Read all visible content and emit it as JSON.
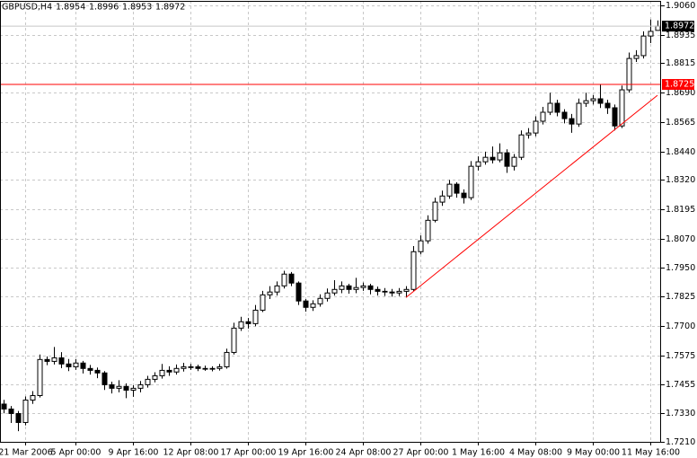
{
  "chart_data": {
    "type": "candlestick",
    "title": "GBPUSD,H4",
    "categories": [
      null,
      null,
      null,
      "21 Mar 2006",
      null,
      null,
      null,
      null,
      null,
      null,
      "5 Apr 00:00",
      null,
      null,
      null,
      null,
      null,
      null,
      null,
      "9 Apr 16:00",
      null,
      null,
      null,
      null,
      null,
      null,
      null,
      "12 Apr 08:00",
      null,
      null,
      null,
      null,
      null,
      null,
      null,
      "17 Apr 00:00",
      null,
      null,
      null,
      null,
      null,
      null,
      null,
      "19 Apr 16:00",
      null,
      null,
      null,
      null,
      null,
      null,
      null,
      "24 Apr 08:00",
      null,
      null,
      null,
      null,
      null,
      null,
      null,
      "27 Apr 00:00",
      null,
      null,
      null,
      null,
      null,
      null,
      null,
      "1 May 16:00",
      null,
      null,
      null,
      null,
      null,
      null,
      null,
      "4 May 08:00",
      null,
      null,
      null,
      null,
      null,
      null,
      null,
      "9 May 00:00",
      null,
      null,
      null,
      null,
      null,
      null,
      null,
      "11 May 16:00",
      null
    ],
    "open": [
      1.737,
      1.7349,
      1.733,
      1.7292,
      1.7387,
      1.7406,
      1.7559,
      1.7551,
      1.7566,
      1.754,
      1.7528,
      1.7544,
      1.7521,
      1.7513,
      1.7502,
      1.7452,
      1.7437,
      1.7445,
      1.7429,
      1.7437,
      1.7452,
      1.7475,
      1.749,
      1.7513,
      1.7506,
      1.7521,
      1.7528,
      1.7528,
      1.7521,
      1.7521,
      1.7521,
      1.7528,
      1.7589,
      1.7692,
      1.7719,
      1.7711,
      1.7768,
      1.7833,
      1.7845,
      1.7871,
      1.7921,
      1.7883,
      1.7807,
      1.778,
      1.7795,
      1.7818,
      1.7841,
      1.7856,
      1.7871,
      1.7856,
      1.7864,
      1.7871,
      1.7856,
      1.7848,
      1.7845,
      1.7841,
      1.7848,
      1.7856,
      1.8016,
      1.8062,
      1.8149,
      1.8226,
      1.8252,
      1.8302,
      1.8264,
      1.8245,
      1.8378,
      1.8397,
      1.8416,
      1.8405,
      1.8435,
      1.8378,
      1.8416,
      1.8511,
      1.8519,
      1.8569,
      1.8607,
      1.8645,
      1.8607,
      1.858,
      1.8557,
      1.8645,
      1.8656,
      1.8664,
      1.8645,
      1.8626,
      1.8549,
      1.8702,
      1.8835,
      1.8847,
      1.893,
      1.8954
    ],
    "high": [
      1.7388,
      1.7362,
      1.7341,
      1.7402,
      1.7425,
      1.758,
      1.7572,
      1.7612,
      1.759,
      1.7561,
      1.756,
      1.7553,
      1.7536,
      1.7525,
      1.751,
      1.7465,
      1.7471,
      1.7458,
      1.745,
      1.7468,
      1.749,
      1.7505,
      1.754,
      1.753,
      1.7538,
      1.7545,
      1.754,
      1.7537,
      1.7533,
      1.753,
      1.754,
      1.7605,
      1.7715,
      1.774,
      1.7735,
      1.779,
      1.785,
      1.787,
      1.789,
      1.7935,
      1.793,
      1.789,
      1.7815,
      1.781,
      1.7835,
      1.786,
      1.7895,
      1.789,
      1.788,
      1.7905,
      1.7885,
      1.788,
      1.7868,
      1.7862,
      1.7858,
      1.7862,
      1.787,
      1.804,
      1.8085,
      1.817,
      1.8245,
      1.8275,
      1.832,
      1.831,
      1.828,
      1.84,
      1.842,
      1.844,
      1.8462,
      1.8475,
      1.845,
      1.843,
      1.853,
      1.854,
      1.859,
      1.863,
      1.869,
      1.866,
      1.862,
      1.86,
      1.8665,
      1.869,
      1.868,
      1.8725,
      1.866,
      1.864,
      1.872,
      1.886,
      1.887,
      1.895,
      1.9,
      1.8996
    ],
    "low": [
      1.7331,
      1.729,
      1.7255,
      1.728,
      1.7371,
      1.7398,
      1.7535,
      1.7538,
      1.7522,
      1.751,
      1.7515,
      1.75,
      1.7495,
      1.748,
      1.743,
      1.7415,
      1.742,
      1.7395,
      1.7401,
      1.742,
      1.744,
      1.7462,
      1.7478,
      1.749,
      1.7495,
      1.7508,
      1.7515,
      1.751,
      1.7511,
      1.7509,
      1.7512,
      1.752,
      1.758,
      1.768,
      1.769,
      1.77,
      1.776,
      1.7815,
      1.783,
      1.786,
      1.787,
      1.779,
      1.7762,
      1.7765,
      1.7783,
      1.7805,
      1.783,
      1.784,
      1.7838,
      1.784,
      1.785,
      1.7835,
      1.783,
      1.7828,
      1.7825,
      1.7828,
      1.7822,
      1.785,
      1.8005,
      1.805,
      1.814,
      1.821,
      1.824,
      1.8245,
      1.822,
      1.8235,
      1.836,
      1.8385,
      1.839,
      1.8395,
      1.835,
      1.836,
      1.8405,
      1.8495,
      1.8505,
      1.8555,
      1.8595,
      1.859,
      1.856,
      1.852,
      1.8545,
      1.863,
      1.864,
      1.8625,
      1.86,
      1.853,
      1.854,
      1.869,
      1.882,
      1.8835,
      1.89,
      1.8953
    ],
    "close": [
      1.7349,
      1.733,
      1.7292,
      1.7387,
      1.7406,
      1.7559,
      1.7551,
      1.7566,
      1.754,
      1.7528,
      1.7544,
      1.7521,
      1.7513,
      1.7502,
      1.7452,
      1.7437,
      1.7445,
      1.7429,
      1.7437,
      1.7452,
      1.7475,
      1.749,
      1.7513,
      1.7506,
      1.7521,
      1.7528,
      1.7528,
      1.7521,
      1.7521,
      1.7521,
      1.7528,
      1.7589,
      1.7692,
      1.7719,
      1.7711,
      1.7768,
      1.7833,
      1.7845,
      1.7871,
      1.7921,
      1.7883,
      1.7807,
      1.778,
      1.7795,
      1.7818,
      1.7841,
      1.7856,
      1.7871,
      1.7856,
      1.7864,
      1.7871,
      1.7856,
      1.7848,
      1.7845,
      1.7841,
      1.7848,
      1.7856,
      1.8016,
      1.8062,
      1.8149,
      1.8226,
      1.8252,
      1.8302,
      1.8264,
      1.8245,
      1.8378,
      1.8397,
      1.8416,
      1.8405,
      1.8435,
      1.8378,
      1.8416,
      1.8511,
      1.8519,
      1.8569,
      1.8607,
      1.8645,
      1.8607,
      1.858,
      1.8557,
      1.8645,
      1.8656,
      1.8664,
      1.8645,
      1.8626,
      1.8549,
      1.8702,
      1.8835,
      1.8847,
      1.893,
      1.895,
      1.8972
    ],
    "up_color": "#ffffff",
    "down_color": "#000000",
    "line_color": "#000000",
    "ylim": [
      1.721,
      1.9079
    ],
    "yticks": [
      {
        "value": 1.906,
        "label": "1.9060"
      },
      1.8935,
      1.8815,
      {
        "value": 1.869,
        "label": "1.8690"
      },
      1.8565,
      {
        "value": 1.844,
        "label": "1.8440"
      },
      {
        "value": 1.832,
        "label": "1.8320"
      },
      1.8195,
      {
        "value": 1.807,
        "label": "1.8070"
      },
      {
        "value": 1.795,
        "label": "1.7950"
      },
      1.7825,
      {
        "value": 1.77,
        "label": "1.7700"
      },
      1.7575,
      1.7455,
      {
        "value": 1.733,
        "label": "1.7330"
      },
      {
        "value": 1.721,
        "label": "1.7210"
      }
    ],
    "grid": true,
    "hline": {
      "value": 1.8725,
      "color": "#ff0000"
    },
    "trendline": {
      "x": [
        56,
        91
      ],
      "y": [
        1.7822,
        1.8679
      ],
      "color": "#ff0000"
    }
  }
}
